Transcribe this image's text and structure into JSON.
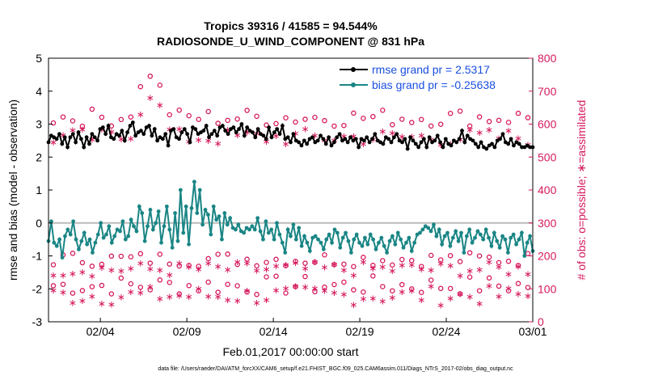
{
  "title_line1": "Tropics 39316 / 41585 = 94.544%",
  "title_line2": "RADIOSONDE_U_WIND_COMPONENT @ 831 hPa",
  "footer": "data file: /Users/raeder/DAI/ATM_forcXX/CAM6_setup/f.e21.FHIST_BGC.f09_025.CAM6assim.011/Diags_NTrS_2017-02/obs_diag_output.nc",
  "colors": {
    "rmse": "#000000",
    "bias": "#1a8585",
    "obs": "#d6195e",
    "axis": "#000000",
    "zero": "#bbbbbb"
  },
  "chart_data": {
    "type": "line",
    "title": "Tropics 39316 / 41585 = 94.544%",
    "subtitle": "RADIOSONDE_U_WIND_COMPONENT @ 831 hPa",
    "xlabel": "Feb.01,2017 00:00:00 start",
    "ylabel": "rmse and bias (model - observation)",
    "y2label": "# of obs: o=possible; ∗=assimilated",
    "xlim": [
      0,
      28
    ],
    "ylim": [
      -3,
      5
    ],
    "y2lim": [
      0,
      800
    ],
    "xticks": [
      3,
      8,
      13,
      18,
      23,
      28
    ],
    "xticklabels": [
      "02/04",
      "02/09",
      "02/14",
      "02/19",
      "02/24",
      "03/01"
    ],
    "yticks": [
      -3,
      -2,
      -1,
      0,
      1,
      2,
      3,
      4,
      5
    ],
    "y2ticks": [
      0,
      100,
      200,
      300,
      400,
      500,
      600,
      700,
      800
    ],
    "legend": [
      "rmse grand pr = 2.5317",
      "bias grand pr = -0.25638"
    ],
    "legend_position": "top-right",
    "series": [
      {
        "name": "rmse grand pr = 2.5317",
        "axis": "left",
        "values": [
          2.45,
          2.65,
          2.6,
          2.55,
          2.7,
          2.4,
          2.6,
          2.3,
          2.6,
          2.7,
          2.45,
          2.75,
          2.55,
          2.3,
          2.6,
          2.4,
          2.7,
          2.6,
          2.5,
          2.85,
          2.9,
          2.7,
          2.95,
          2.6,
          2.55,
          2.7,
          2.65,
          2.8,
          2.5,
          2.75,
          2.95,
          3.05,
          2.65,
          2.75,
          2.8,
          2.7,
          2.9,
          2.95,
          2.65,
          2.85,
          2.5,
          2.6,
          2.55,
          2.7,
          2.35,
          2.8,
          2.85,
          2.6,
          2.55,
          2.75,
          2.85,
          2.7,
          2.45,
          2.9,
          2.85,
          2.7,
          2.75,
          2.8,
          2.95,
          2.6,
          2.7,
          2.8,
          2.65,
          2.9,
          2.95,
          2.8,
          2.7,
          2.85,
          2.9,
          2.75,
          2.85,
          3.0,
          2.65,
          2.9,
          2.8,
          2.75,
          2.6,
          2.85,
          2.7,
          2.65,
          2.55,
          2.9,
          2.6,
          2.75,
          2.85,
          2.7,
          2.95,
          2.55,
          2.6,
          2.45,
          2.7,
          2.5,
          2.45,
          2.35,
          2.5,
          2.4,
          2.55,
          2.6,
          2.45,
          2.5,
          2.65,
          2.55,
          2.4,
          2.6,
          2.35,
          2.45,
          2.6,
          2.7,
          2.5,
          2.55,
          2.45,
          2.6,
          2.5,
          2.55,
          2.3,
          2.55,
          2.5,
          2.6,
          2.45,
          2.55,
          2.7,
          2.5,
          2.45,
          2.4,
          2.6,
          2.55,
          2.45,
          2.6,
          2.7,
          2.5,
          2.45,
          2.55,
          2.25,
          2.6,
          2.5,
          2.4,
          2.3,
          2.45,
          2.55,
          2.3,
          2.6,
          2.45,
          2.5,
          2.65,
          2.45,
          2.3,
          2.55,
          2.4,
          2.35,
          2.5,
          2.45,
          2.55,
          2.8,
          2.45,
          2.65,
          2.55,
          2.5,
          2.4,
          2.3,
          2.45,
          2.3,
          2.25,
          2.35,
          2.4,
          2.3,
          2.5,
          2.55,
          2.7,
          2.45,
          2.4,
          2.55,
          2.35,
          2.45,
          2.4,
          2.3,
          2.3,
          2.35,
          2.3,
          2.3
        ]
      },
      {
        "name": "bias grand pr = -0.25638",
        "axis": "left",
        "values": [
          -0.55,
          0.05,
          -0.6,
          -0.7,
          -0.5,
          -1.05,
          -0.4,
          -0.2,
          -0.35,
          0.05,
          -0.5,
          -0.8,
          -0.55,
          -0.3,
          -0.65,
          -0.5,
          -0.9,
          -0.6,
          -0.35,
          0.0,
          -0.45,
          -0.35,
          -0.1,
          -0.6,
          -0.4,
          -0.2,
          -0.25,
          0.05,
          -0.5,
          -0.4,
          0.1,
          -0.1,
          -0.25,
          0.5,
          0.3,
          -0.55,
          -0.1,
          0.4,
          -0.2,
          0.0,
          0.35,
          -0.6,
          -0.1,
          0.5,
          -0.2,
          -0.75,
          0.3,
          -0.55,
          1.0,
          -0.3,
          0.5,
          -0.65,
          0.45,
          1.25,
          0.3,
          1.0,
          -0.05,
          0.4,
          0.25,
          -0.35,
          0.5,
          0.1,
          0.2,
          -0.5,
          0.3,
          -0.05,
          0.15,
          -0.15,
          -0.2,
          -0.05,
          -0.25,
          -0.3,
          -0.15,
          -0.2,
          -0.1,
          -0.2,
          0.15,
          -0.25,
          -0.5,
          0.05,
          -0.3,
          -0.2,
          -0.5,
          0.0,
          -0.35,
          -0.6,
          -0.9,
          -0.2,
          -0.4,
          -0.05,
          -0.5,
          -0.15,
          -0.7,
          -0.4,
          -0.6,
          -0.85,
          -0.45,
          -0.4,
          -0.5,
          -0.6,
          -0.8,
          -0.5,
          -0.35,
          -0.6,
          -0.2,
          -0.3,
          -0.75,
          -0.45,
          -0.3,
          -0.55,
          -0.9,
          -0.5,
          -0.35,
          -0.6,
          -0.7,
          -0.45,
          -0.65,
          -0.35,
          -0.5,
          -0.8,
          -0.6,
          -0.45,
          -0.7,
          -0.9,
          -0.55,
          -0.4,
          -0.65,
          -0.3,
          -0.5,
          -0.75,
          -0.6,
          -0.45,
          -0.85,
          -0.6,
          -0.35,
          -0.3,
          -0.2,
          -0.1,
          -0.15,
          -0.25,
          -0.05,
          -0.4,
          -0.2,
          -0.65,
          -0.4,
          -0.3,
          -0.7,
          -0.45,
          -0.25,
          -0.55,
          -0.3,
          -0.9,
          -0.4,
          -0.2,
          -0.6,
          -0.45,
          -0.25,
          -0.35,
          -0.5,
          -0.2,
          -0.45,
          -0.7,
          -0.3,
          -0.55,
          -0.75,
          -0.4,
          -0.5,
          -0.9,
          -0.45,
          -0.35,
          -0.65,
          -0.5,
          -0.3,
          -1.0,
          -0.6,
          -0.4,
          -0.85
        ]
      }
    ]
  }
}
